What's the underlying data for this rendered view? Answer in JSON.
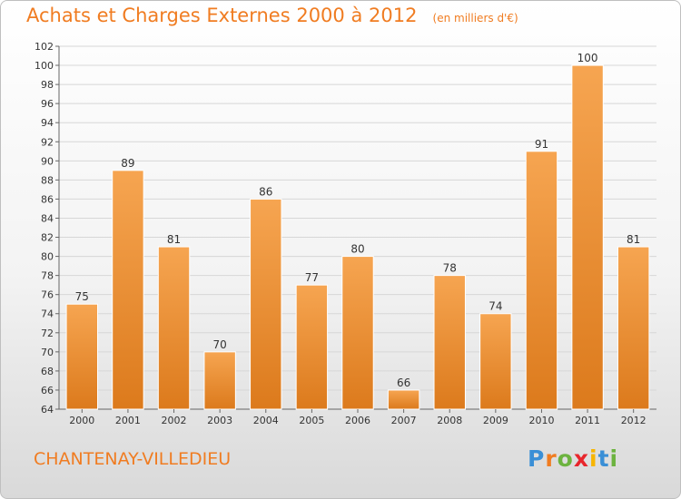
{
  "title": "Achats et Charges Externes 2000 à 2012",
  "unit_note": "(en milliers d'€)",
  "place": "CHANTENAY-VILLEDIEU",
  "logo": {
    "letters": [
      "P",
      "r",
      "o",
      "x",
      "i",
      "t",
      "i"
    ],
    "colors": [
      "#3a8fd6",
      "#f07c21",
      "#6cb33f",
      "#e8262c",
      "#f7b500",
      "#3a8fd6",
      "#6cb33f"
    ]
  },
  "colors": {
    "bar": "#f29d45",
    "bar_dark": "#e07f20",
    "text_accent": "#f07c21"
  },
  "chart_data": {
    "type": "bar",
    "categories": [
      "2000",
      "2001",
      "2002",
      "2003",
      "2004",
      "2005",
      "2006",
      "2007",
      "2008",
      "2009",
      "2010",
      "2011",
      "2012"
    ],
    "values": [
      75,
      89,
      81,
      70,
      86,
      77,
      80,
      66,
      78,
      74,
      91,
      100,
      81
    ],
    "ylim": [
      64,
      102
    ],
    "yticks": [
      64,
      66,
      68,
      70,
      72,
      74,
      76,
      78,
      80,
      82,
      84,
      86,
      88,
      90,
      92,
      94,
      96,
      98,
      100,
      102
    ],
    "grid": true,
    "title": "Achats et Charges Externes 2000 à 2012",
    "xlabel": "",
    "ylabel": ""
  }
}
